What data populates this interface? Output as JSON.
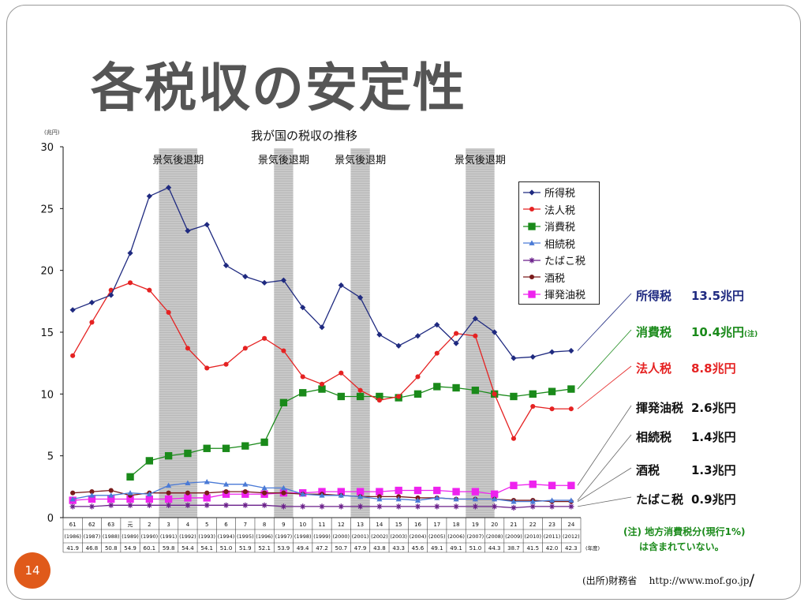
{
  "slide": {
    "title": "各税収の安定性",
    "page_number": "14",
    "source_label": "(出所)財務省",
    "source_url": "http://www.mof.go.jp",
    "source_slash": "/"
  },
  "chart_data": {
    "type": "line",
    "title": "我が国の税収の推移",
    "unit": "(兆円)",
    "xlabel": "(年度)",
    "ylim": [
      0,
      30
    ],
    "yticks": [
      0,
      5,
      10,
      15,
      20,
      25,
      30
    ],
    "categories": [
      {
        "era": "61",
        "year": "(1986)",
        "total": "41.9"
      },
      {
        "era": "62",
        "year": "(1987)",
        "total": "46.8"
      },
      {
        "era": "63",
        "year": "(1988)",
        "total": "50.8"
      },
      {
        "era": "元",
        "year": "(1989)",
        "total": "54.9"
      },
      {
        "era": "2",
        "year": "(1990)",
        "total": "60.1"
      },
      {
        "era": "3",
        "year": "(1991)",
        "total": "59.8"
      },
      {
        "era": "4",
        "year": "(1992)",
        "total": "54.4"
      },
      {
        "era": "5",
        "year": "(1993)",
        "total": "54.1"
      },
      {
        "era": "6",
        "year": "(1994)",
        "total": "51.0"
      },
      {
        "era": "7",
        "year": "(1995)",
        "total": "51.9"
      },
      {
        "era": "8",
        "year": "(1996)",
        "total": "52.1"
      },
      {
        "era": "9",
        "year": "(1997)",
        "total": "53.9"
      },
      {
        "era": "10",
        "year": "(1998)",
        "total": "49.4"
      },
      {
        "era": "11",
        "year": "(1999)",
        "total": "47.2"
      },
      {
        "era": "12",
        "year": "(2000)",
        "total": "50.7"
      },
      {
        "era": "13",
        "year": "(2001)",
        "total": "47.9"
      },
      {
        "era": "14",
        "year": "(2002)",
        "total": "43.8"
      },
      {
        "era": "15",
        "year": "(2003)",
        "total": "43.3"
      },
      {
        "era": "16",
        "year": "(2004)",
        "total": "45.6"
      },
      {
        "era": "17",
        "year": "(2005)",
        "total": "49.1"
      },
      {
        "era": "18",
        "year": "(2006)",
        "total": "49.1"
      },
      {
        "era": "19",
        "year": "(2007)",
        "total": "51.0"
      },
      {
        "era": "20",
        "year": "(2008)",
        "total": "44.3"
      },
      {
        "era": "21",
        "year": "(2009)",
        "total": "38.7"
      },
      {
        "era": "22",
        "year": "(2010)",
        "total": "41.5"
      },
      {
        "era": "23",
        "year": "(2011)",
        "total": "42.0"
      },
      {
        "era": "24",
        "year": "(2012)",
        "total": "42.3"
      }
    ],
    "recessions": [
      {
        "label": "景気後退期",
        "from": 5,
        "to": 7
      },
      {
        "label": "景気後退期",
        "from": 11,
        "to": 12
      },
      {
        "label": "景気後退期",
        "from": 15,
        "to": 16
      },
      {
        "label": "景気後退期",
        "from": 21,
        "to": 22.5
      }
    ],
    "series": [
      {
        "name": "所得税",
        "color": "#1f2a80",
        "marker": "diamond",
        "values": [
          16.8,
          17.4,
          18.0,
          21.4,
          26.0,
          26.7,
          23.2,
          23.7,
          20.4,
          19.5,
          19.0,
          19.2,
          17.0,
          15.4,
          18.8,
          17.8,
          14.8,
          13.9,
          14.7,
          15.6,
          14.1,
          16.1,
          15.0,
          12.9,
          13.0,
          13.4,
          13.5
        ]
      },
      {
        "name": "法人税",
        "color": "#e52222",
        "marker": "circle",
        "values": [
          13.1,
          15.8,
          18.4,
          19.0,
          18.4,
          16.6,
          13.7,
          12.1,
          12.4,
          13.7,
          14.5,
          13.5,
          11.4,
          10.8,
          11.7,
          10.3,
          9.5,
          9.8,
          11.4,
          13.3,
          14.9,
          14.7,
          10.0,
          6.4,
          9.0,
          8.8,
          8.8
        ]
      },
      {
        "name": "消費税",
        "color": "#1a8a1a",
        "marker": "square",
        "values": [
          null,
          null,
          null,
          3.3,
          4.6,
          5.0,
          5.2,
          5.6,
          5.6,
          5.8,
          6.1,
          9.3,
          10.1,
          10.4,
          9.8,
          9.8,
          9.8,
          9.7,
          10.0,
          10.6,
          10.5,
          10.3,
          10.0,
          9.8,
          10.0,
          10.2,
          10.4
        ]
      },
      {
        "name": "相続税",
        "color": "#4a7ad6",
        "marker": "triangle",
        "values": [
          1.5,
          1.8,
          1.8,
          2.0,
          1.9,
          2.6,
          2.8,
          2.9,
          2.7,
          2.7,
          2.4,
          2.4,
          1.9,
          1.8,
          1.8,
          1.7,
          1.5,
          1.5,
          1.4,
          1.6,
          1.5,
          1.5,
          1.5,
          1.3,
          1.3,
          1.4,
          1.4
        ]
      },
      {
        "name": "たばこ税",
        "color": "#6a1f8a",
        "marker": "star",
        "values": [
          0.9,
          0.9,
          1.0,
          1.0,
          1.0,
          1.0,
          1.0,
          1.0,
          1.0,
          1.0,
          1.0,
          0.9,
          0.9,
          0.9,
          0.9,
          0.9,
          0.9,
          0.9,
          0.9,
          0.9,
          0.9,
          0.9,
          0.9,
          0.8,
          0.9,
          0.9,
          0.9
        ]
      },
      {
        "name": "酒税",
        "color": "#7a1a1a",
        "marker": "circle",
        "values": [
          2.0,
          2.1,
          2.2,
          1.8,
          2.0,
          2.0,
          2.0,
          2.0,
          2.1,
          2.1,
          2.0,
          2.0,
          1.9,
          1.9,
          1.8,
          1.7,
          1.7,
          1.7,
          1.6,
          1.6,
          1.5,
          1.5,
          1.5,
          1.4,
          1.4,
          1.3,
          1.3
        ]
      },
      {
        "name": "揮発油税",
        "color": "#ee22ee",
        "marker": "square",
        "values": [
          1.4,
          1.5,
          1.5,
          1.5,
          1.5,
          1.5,
          1.6,
          1.6,
          1.9,
          1.9,
          1.9,
          2.0,
          2.0,
          2.1,
          2.1,
          2.1,
          2.1,
          2.2,
          2.2,
          2.2,
          2.1,
          2.1,
          1.9,
          2.6,
          2.7,
          2.6,
          2.6
        ]
      }
    ],
    "summary": [
      {
        "name": "所得税",
        "value": "13.5兆円",
        "color": "#1f2a80",
        "note": "",
        "series": 0
      },
      {
        "name": "消費税",
        "value": "10.4兆円",
        "color": "#1a8a1a",
        "note": "(注)",
        "series": 2
      },
      {
        "name": "法人税",
        "value": "8.8兆円",
        "color": "#e52222",
        "note": "",
        "series": 1
      },
      {
        "name": "揮発油税",
        "value": "2.6兆円",
        "color": "#111111",
        "note": "",
        "series": 6
      },
      {
        "name": "相続税",
        "value": "1.4兆円",
        "color": "#111111",
        "note": "",
        "series": 3
      },
      {
        "name": "酒税",
        "value": "1.3兆円",
        "color": "#111111",
        "note": "",
        "series": 5
      },
      {
        "name": "たばこ税",
        "value": "0.9兆円",
        "color": "#111111",
        "note": "",
        "series": 4
      }
    ],
    "note_lines": [
      "(注) 地方消費税分(現行1%)",
      "は含まれていない。"
    ]
  }
}
